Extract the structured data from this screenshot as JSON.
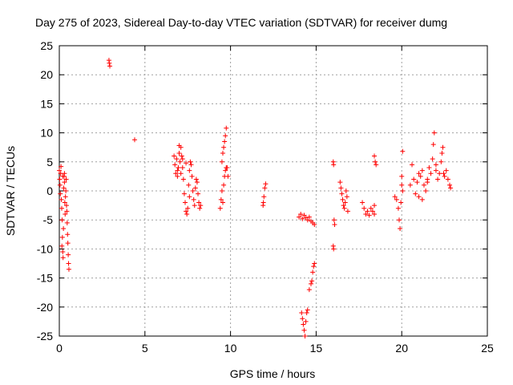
{
  "chart_data": {
    "type": "scatter",
    "title": "Day 275 of 2023, Sidereal Day-to-day VTEC variation (SDTVAR) for receiver dumg",
    "xlabel": "GPS time / hours",
    "ylabel": "SDTVAR / TECUs",
    "xlim": [
      0,
      25
    ],
    "ylim": [
      -25,
      25
    ],
    "xticks": [
      0,
      5,
      10,
      15,
      20,
      25
    ],
    "yticks": [
      -25,
      -20,
      -15,
      -10,
      -5,
      0,
      5,
      10,
      15,
      20,
      25
    ],
    "xtick_labels": [
      "0",
      "5",
      "10",
      "15",
      "20",
      "25"
    ],
    "ytick_labels": [
      "-25",
      "-20",
      "-15",
      "-10",
      "-5",
      "0",
      "5",
      "10",
      "15",
      "20",
      "25"
    ],
    "grid": true,
    "marker": "plus",
    "color": "#ff0000",
    "series": [
      {
        "name": "SDTVAR",
        "points": [
          [
            0.0,
            3.5
          ],
          [
            0.02,
            2.0
          ],
          [
            0.04,
            1.0
          ],
          [
            0.06,
            -0.5
          ],
          [
            0.08,
            3.0
          ],
          [
            0.1,
            4.2
          ],
          [
            0.12,
            -1.5
          ],
          [
            0.14,
            -3.0
          ],
          [
            0.16,
            -5.0
          ],
          [
            0.18,
            -8.0
          ],
          [
            0.2,
            -10.5
          ],
          [
            0.22,
            -11.5
          ],
          [
            0.24,
            -6.5
          ],
          [
            0.26,
            0.5
          ],
          [
            0.28,
            2.5
          ],
          [
            0.3,
            1.5
          ],
          [
            0.32,
            -2.0
          ],
          [
            0.34,
            -4.0
          ],
          [
            0.36,
            -1.0
          ],
          [
            0.38,
            0.0
          ],
          [
            0.4,
            2.0
          ],
          [
            0.42,
            -2.5
          ],
          [
            0.44,
            -3.5
          ],
          [
            0.46,
            -5.5
          ],
          [
            0.48,
            -7.5
          ],
          [
            0.5,
            -9.0
          ],
          [
            0.52,
            -11.0
          ],
          [
            0.54,
            -12.5
          ],
          [
            0.56,
            -13.5
          ],
          [
            0.3,
            3.0
          ],
          [
            0.2,
            2.5
          ],
          [
            0.15,
            -9.5
          ],
          [
            2.9,
            22.5
          ],
          [
            2.92,
            22.0
          ],
          [
            2.95,
            21.5
          ],
          [
            4.4,
            8.8
          ],
          [
            6.7,
            6.0
          ],
          [
            6.75,
            4.5
          ],
          [
            6.8,
            3.0
          ],
          [
            6.85,
            5.5
          ],
          [
            6.9,
            2.5
          ],
          [
            6.95,
            4.0
          ],
          [
            7.0,
            6.5
          ],
          [
            7.05,
            5.0
          ],
          [
            7.1,
            7.5
          ],
          [
            7.15,
            6.0
          ],
          [
            7.2,
            4.0
          ],
          [
            7.25,
            2.0
          ],
          [
            7.3,
            -0.5
          ],
          [
            7.35,
            -2.0
          ],
          [
            7.4,
            -3.5
          ],
          [
            7.45,
            -4.0
          ],
          [
            7.5,
            -3.0
          ],
          [
            7.55,
            1.0
          ],
          [
            7.6,
            3.5
          ],
          [
            7.65,
            5.0
          ],
          [
            7.7,
            4.5
          ],
          [
            7.75,
            2.5
          ],
          [
            7.8,
            0.0
          ],
          [
            7.85,
            -1.5
          ],
          [
            7.9,
            -2.5
          ],
          [
            7.95,
            0.5
          ],
          [
            8.0,
            2.0
          ],
          [
            8.05,
            1.5
          ],
          [
            8.1,
            -0.5
          ],
          [
            8.15,
            -2.0
          ],
          [
            8.2,
            -3.0
          ],
          [
            8.25,
            -2.5
          ],
          [
            7.0,
            7.8
          ],
          [
            7.2,
            5.5
          ],
          [
            6.9,
            3.5
          ],
          [
            7.4,
            4.8
          ],
          [
            7.6,
            -1.0
          ],
          [
            7.1,
            3.0
          ],
          [
            9.4,
            -3.0
          ],
          [
            9.45,
            -1.5
          ],
          [
            9.5,
            0.0
          ],
          [
            9.55,
            -2.0
          ],
          [
            9.6,
            1.0
          ],
          [
            9.65,
            2.5
          ],
          [
            9.7,
            3.5
          ],
          [
            9.75,
            4.0
          ],
          [
            9.5,
            5.0
          ],
          [
            9.55,
            6.5
          ],
          [
            9.6,
            7.5
          ],
          [
            9.65,
            8.5
          ],
          [
            9.7,
            9.5
          ],
          [
            9.75,
            10.8
          ],
          [
            9.8,
            4.0
          ],
          [
            9.85,
            2.5
          ],
          [
            11.9,
            -2.5
          ],
          [
            11.95,
            -1.0
          ],
          [
            12.0,
            0.5
          ],
          [
            12.05,
            1.2
          ],
          [
            11.92,
            -2.0
          ],
          [
            14.0,
            -4.5
          ],
          [
            14.1,
            -4.0
          ],
          [
            14.2,
            -4.8
          ],
          [
            14.3,
            -4.2
          ],
          [
            14.4,
            -4.6
          ],
          [
            14.5,
            -5.0
          ],
          [
            14.6,
            -4.5
          ],
          [
            14.7,
            -5.2
          ],
          [
            14.8,
            -5.5
          ],
          [
            14.9,
            -5.8
          ],
          [
            14.15,
            -21.0
          ],
          [
            14.2,
            -22.0
          ],
          [
            14.25,
            -23.0
          ],
          [
            14.3,
            -24.0
          ],
          [
            14.35,
            -25.0
          ],
          [
            14.4,
            -22.5
          ],
          [
            14.45,
            -21.0
          ],
          [
            14.5,
            -20.5
          ],
          [
            14.6,
            -17.0
          ],
          [
            14.7,
            -16.0
          ],
          [
            14.75,
            -15.5
          ],
          [
            14.8,
            -14.0
          ],
          [
            14.85,
            -13.0
          ],
          [
            14.9,
            -12.5
          ],
          [
            16.0,
            5.0
          ],
          [
            16.02,
            4.5
          ],
          [
            16.05,
            -5.0
          ],
          [
            16.08,
            -5.8
          ],
          [
            16.0,
            -9.5
          ],
          [
            16.02,
            -10.0
          ],
          [
            16.4,
            1.5
          ],
          [
            16.45,
            0.5
          ],
          [
            16.5,
            -0.5
          ],
          [
            16.55,
            -1.5
          ],
          [
            16.6,
            -2.5
          ],
          [
            16.65,
            -3.0
          ],
          [
            16.7,
            -2.0
          ],
          [
            16.75,
            0.0
          ],
          [
            16.8,
            -1.0
          ],
          [
            16.85,
            -3.5
          ],
          [
            17.7,
            -2.0
          ],
          [
            17.8,
            -3.0
          ],
          [
            17.9,
            -4.0
          ],
          [
            18.0,
            -3.5
          ],
          [
            18.1,
            -4.2
          ],
          [
            18.2,
            -3.0
          ],
          [
            18.3,
            -3.5
          ],
          [
            18.4,
            -4.0
          ],
          [
            18.4,
            6.0
          ],
          [
            18.45,
            5.0
          ],
          [
            18.5,
            4.5
          ],
          [
            18.4,
            -2.5
          ],
          [
            19.6,
            -1.0
          ],
          [
            19.7,
            -1.5
          ],
          [
            19.8,
            -3.0
          ],
          [
            19.85,
            -5.0
          ],
          [
            19.9,
            -6.5
          ],
          [
            19.95,
            -2.0
          ],
          [
            20.0,
            1.0
          ],
          [
            20.05,
            6.8
          ],
          [
            20.0,
            2.5
          ],
          [
            20.05,
            0.0
          ],
          [
            20.5,
            1.0
          ],
          [
            20.6,
            4.5
          ],
          [
            20.7,
            2.0
          ],
          [
            20.8,
            -0.5
          ],
          [
            20.9,
            1.5
          ],
          [
            21.0,
            -1.0
          ],
          [
            21.1,
            2.5
          ],
          [
            21.2,
            3.5
          ],
          [
            21.3,
            1.0
          ],
          [
            21.4,
            0.0
          ],
          [
            21.5,
            2.0
          ],
          [
            21.6,
            4.0
          ],
          [
            21.7,
            3.0
          ],
          [
            21.8,
            5.5
          ],
          [
            21.85,
            8.0
          ],
          [
            21.9,
            10.0
          ],
          [
            22.0,
            3.5
          ],
          [
            22.1,
            2.0
          ],
          [
            22.2,
            3.0
          ],
          [
            22.3,
            5.0
          ],
          [
            22.35,
            6.5
          ],
          [
            22.4,
            7.5
          ],
          [
            22.45,
            3.0
          ],
          [
            22.5,
            2.5
          ],
          [
            22.6,
            3.5
          ],
          [
            22.7,
            2.0
          ],
          [
            22.8,
            1.0
          ],
          [
            22.85,
            0.5
          ],
          [
            21.0,
            3.0
          ],
          [
            21.2,
            -1.5
          ],
          [
            21.5,
            1.5
          ],
          [
            22.0,
            4.5
          ]
        ]
      }
    ]
  }
}
